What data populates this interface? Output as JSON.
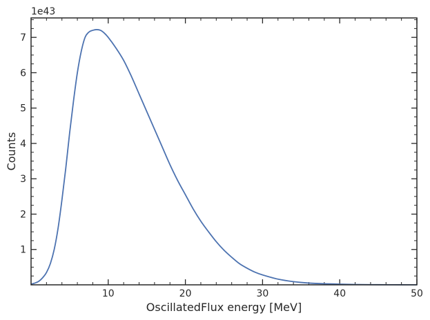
{
  "chart_data": {
    "type": "line",
    "title": "",
    "xlabel": "OscillatedFlux energy [MeV]",
    "ylabel": "Counts",
    "y_offset_label": "1e43",
    "xlim": [
      0,
      50
    ],
    "ylim": [
      0,
      7.55
    ],
    "x_ticks": [
      10,
      20,
      30,
      40,
      50
    ],
    "y_ticks": [
      1,
      2,
      3,
      4,
      5,
      6,
      7
    ],
    "x_minor_step": 2,
    "y_minor_step": 0.25,
    "grid": false,
    "legend": "none",
    "series": [
      {
        "color": "#4c72b0",
        "x": [
          0,
          0.5,
          1,
          1.5,
          2,
          2.5,
          3,
          3.5,
          4,
          4.5,
          5,
          5.5,
          6,
          6.5,
          7,
          7.5,
          8,
          8.5,
          9,
          9.5,
          10,
          11,
          12,
          13,
          14,
          15,
          16,
          17,
          18,
          19,
          20,
          21,
          22,
          23,
          24,
          25,
          26,
          27,
          28,
          29,
          30,
          32,
          34,
          36,
          38,
          40,
          42,
          44,
          46,
          48,
          50
        ],
        "values": [
          0.02,
          0.05,
          0.1,
          0.2,
          0.35,
          0.6,
          1.0,
          1.6,
          2.4,
          3.3,
          4.3,
          5.2,
          6.0,
          6.6,
          7.0,
          7.15,
          7.2,
          7.22,
          7.2,
          7.12,
          7.0,
          6.7,
          6.35,
          5.9,
          5.4,
          4.9,
          4.4,
          3.9,
          3.4,
          2.95,
          2.55,
          2.15,
          1.8,
          1.5,
          1.22,
          0.98,
          0.78,
          0.6,
          0.47,
          0.36,
          0.28,
          0.16,
          0.09,
          0.05,
          0.03,
          0.02,
          0.01,
          0.005,
          0.003,
          0.001,
          0.0
        ]
      }
    ]
  }
}
